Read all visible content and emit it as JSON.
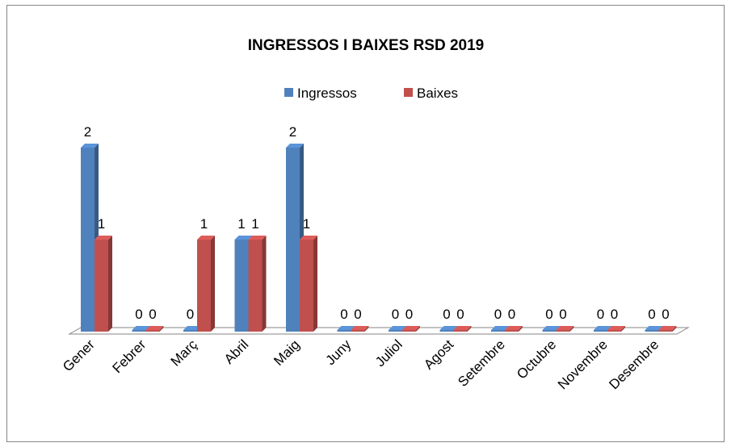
{
  "chart_data": {
    "type": "bar3d",
    "title": "INGRESSOS I BAIXES RSD 2019",
    "categories": [
      "Gener",
      "Febrer",
      "Març",
      "Abril",
      "Maig",
      "Juny",
      "Juliol",
      "Agost",
      "Setembre",
      "Octubre",
      "Novembre",
      "Desembre"
    ],
    "series": [
      {
        "name": "Ingressos",
        "color": "#4f81bd",
        "values": [
          2,
          0,
          0,
          1,
          2,
          0,
          0,
          0,
          0,
          0,
          0,
          0
        ]
      },
      {
        "name": "Baixes",
        "color": "#c0504d",
        "values": [
          1,
          0,
          1,
          1,
          1,
          0,
          0,
          0,
          0,
          0,
          0,
          0
        ]
      }
    ],
    "legend": "top"
  }
}
